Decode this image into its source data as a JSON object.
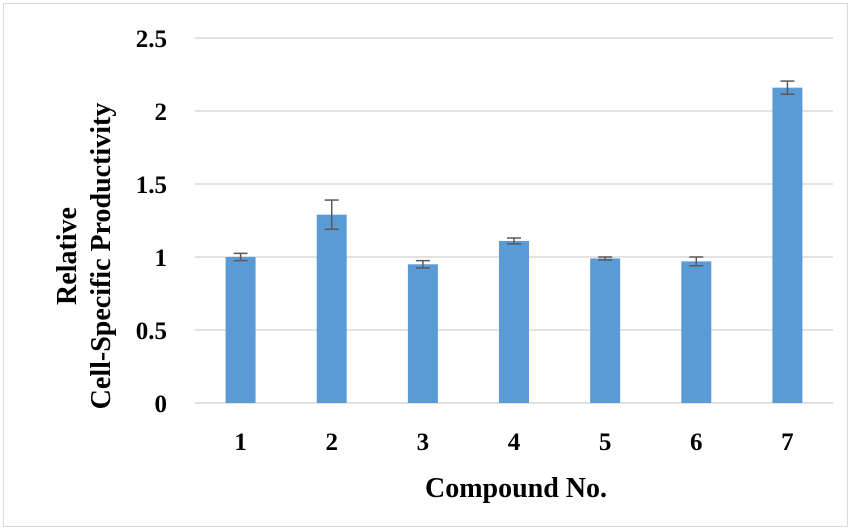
{
  "chart_data": {
    "type": "bar",
    "categories": [
      "1",
      "2",
      "3",
      "4",
      "5",
      "6",
      "7"
    ],
    "values": [
      1.0,
      1.29,
      0.95,
      1.11,
      0.99,
      0.97,
      2.16
    ],
    "errors": [
      0.025,
      0.1,
      0.025,
      0.02,
      0.01,
      0.03,
      0.045
    ],
    "ylim": [
      0,
      2.5
    ],
    "y_ticks": [
      "0",
      "0.5",
      "1",
      "1.5",
      "2",
      "2.5"
    ],
    "y_tick_values": [
      0,
      0.5,
      1,
      1.5,
      2,
      2.5
    ],
    "xlabel": "Compound No.",
    "ylabel_lines": [
      "Relative",
      "Cell-Specific Productivity"
    ],
    "grid": true,
    "colors": {
      "bar": "#5b9bd5",
      "grid": "#d9d9d9",
      "error": "#595959"
    }
  }
}
